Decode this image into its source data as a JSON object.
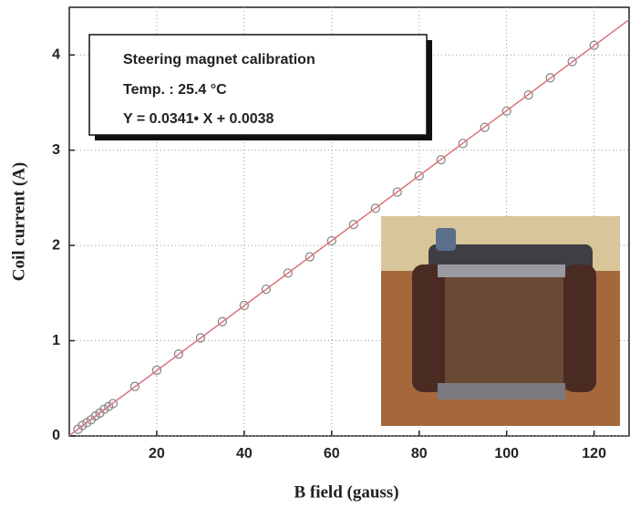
{
  "chart_data": {
    "type": "scatter",
    "xlabel": "B field (gauss)",
    "ylabel": "Coil current (A)",
    "annotations": [
      "Steering magnet calibration",
      "Temp. : 25.4 °C",
      "Y = 0.0341• X + 0.0038"
    ],
    "xlim": [
      0,
      128
    ],
    "ylim": [
      0,
      4.5
    ],
    "xticks": [
      20,
      40,
      60,
      80,
      100,
      120
    ],
    "yticks": [
      0,
      1,
      2,
      3,
      4
    ],
    "grid": true,
    "series": [
      {
        "style": "markers",
        "color": "#8a8a8a",
        "x": [
          2,
          3,
          4,
          5,
          6,
          7,
          8,
          9,
          10,
          15,
          20,
          25,
          30,
          35,
          40,
          45,
          50,
          55,
          60,
          65,
          70,
          75,
          80,
          85,
          90,
          95,
          100,
          105,
          110,
          115,
          120
        ],
        "values": [
          0.07,
          0.11,
          0.14,
          0.17,
          0.21,
          0.24,
          0.28,
          0.31,
          0.34,
          0.52,
          0.69,
          0.86,
          1.03,
          1.2,
          1.37,
          1.54,
          1.71,
          1.88,
          2.05,
          2.22,
          2.39,
          2.56,
          2.73,
          2.9,
          3.07,
          3.24,
          3.41,
          3.58,
          3.76,
          3.93,
          4.1
        ]
      },
      {
        "style": "line",
        "color": "#d9747a",
        "x": [
          0,
          128
        ],
        "values": [
          0.0038,
          4.37
        ]
      }
    ]
  }
}
